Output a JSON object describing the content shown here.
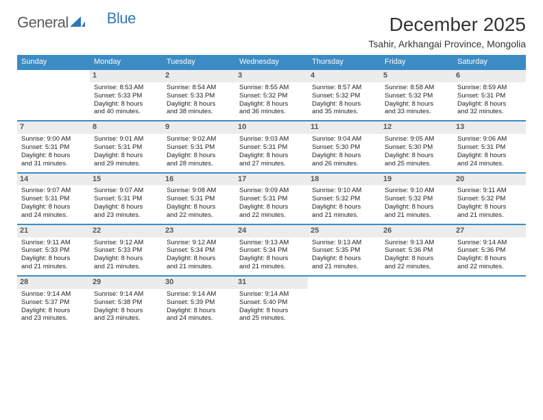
{
  "brand": {
    "word1": "General",
    "word2": "Blue"
  },
  "title": "December 2025",
  "location": "Tsahir, Arkhangai Province, Mongolia",
  "colors": {
    "header_bg": "#3b8bc4",
    "header_text": "#ffffff",
    "daynum_bg": "#ececec",
    "daynum_text": "#555555",
    "row_border": "#3b8bc4",
    "body_text": "#222222",
    "brand_gray": "#5a5a5a",
    "brand_blue": "#2d78b8"
  },
  "typography": {
    "title_fontsize": 28,
    "location_fontsize": 14,
    "header_cell_fontsize": 11,
    "daynum_fontsize": 11,
    "body_fontsize": 9.5
  },
  "weekdays": [
    "Sunday",
    "Monday",
    "Tuesday",
    "Wednesday",
    "Thursday",
    "Friday",
    "Saturday"
  ],
  "weeks": [
    [
      {
        "n": "",
        "l1": "",
        "l2": "",
        "l3": "",
        "l4": "",
        "empty": true
      },
      {
        "n": "1",
        "l1": "Sunrise: 8:53 AM",
        "l2": "Sunset: 5:33 PM",
        "l3": "Daylight: 8 hours",
        "l4": "and 40 minutes."
      },
      {
        "n": "2",
        "l1": "Sunrise: 8:54 AM",
        "l2": "Sunset: 5:33 PM",
        "l3": "Daylight: 8 hours",
        "l4": "and 38 minutes."
      },
      {
        "n": "3",
        "l1": "Sunrise: 8:55 AM",
        "l2": "Sunset: 5:32 PM",
        "l3": "Daylight: 8 hours",
        "l4": "and 36 minutes."
      },
      {
        "n": "4",
        "l1": "Sunrise: 8:57 AM",
        "l2": "Sunset: 5:32 PM",
        "l3": "Daylight: 8 hours",
        "l4": "and 35 minutes."
      },
      {
        "n": "5",
        "l1": "Sunrise: 8:58 AM",
        "l2": "Sunset: 5:32 PM",
        "l3": "Daylight: 8 hours",
        "l4": "and 33 minutes."
      },
      {
        "n": "6",
        "l1": "Sunrise: 8:59 AM",
        "l2": "Sunset: 5:31 PM",
        "l3": "Daylight: 8 hours",
        "l4": "and 32 minutes."
      }
    ],
    [
      {
        "n": "7",
        "l1": "Sunrise: 9:00 AM",
        "l2": "Sunset: 5:31 PM",
        "l3": "Daylight: 8 hours",
        "l4": "and 31 minutes."
      },
      {
        "n": "8",
        "l1": "Sunrise: 9:01 AM",
        "l2": "Sunset: 5:31 PM",
        "l3": "Daylight: 8 hours",
        "l4": "and 29 minutes."
      },
      {
        "n": "9",
        "l1": "Sunrise: 9:02 AM",
        "l2": "Sunset: 5:31 PM",
        "l3": "Daylight: 8 hours",
        "l4": "and 28 minutes."
      },
      {
        "n": "10",
        "l1": "Sunrise: 9:03 AM",
        "l2": "Sunset: 5:31 PM",
        "l3": "Daylight: 8 hours",
        "l4": "and 27 minutes."
      },
      {
        "n": "11",
        "l1": "Sunrise: 9:04 AM",
        "l2": "Sunset: 5:30 PM",
        "l3": "Daylight: 8 hours",
        "l4": "and 26 minutes."
      },
      {
        "n": "12",
        "l1": "Sunrise: 9:05 AM",
        "l2": "Sunset: 5:30 PM",
        "l3": "Daylight: 8 hours",
        "l4": "and 25 minutes."
      },
      {
        "n": "13",
        "l1": "Sunrise: 9:06 AM",
        "l2": "Sunset: 5:31 PM",
        "l3": "Daylight: 8 hours",
        "l4": "and 24 minutes."
      }
    ],
    [
      {
        "n": "14",
        "l1": "Sunrise: 9:07 AM",
        "l2": "Sunset: 5:31 PM",
        "l3": "Daylight: 8 hours",
        "l4": "and 24 minutes."
      },
      {
        "n": "15",
        "l1": "Sunrise: 9:07 AM",
        "l2": "Sunset: 5:31 PM",
        "l3": "Daylight: 8 hours",
        "l4": "and 23 minutes."
      },
      {
        "n": "16",
        "l1": "Sunrise: 9:08 AM",
        "l2": "Sunset: 5:31 PM",
        "l3": "Daylight: 8 hours",
        "l4": "and 22 minutes."
      },
      {
        "n": "17",
        "l1": "Sunrise: 9:09 AM",
        "l2": "Sunset: 5:31 PM",
        "l3": "Daylight: 8 hours",
        "l4": "and 22 minutes."
      },
      {
        "n": "18",
        "l1": "Sunrise: 9:10 AM",
        "l2": "Sunset: 5:32 PM",
        "l3": "Daylight: 8 hours",
        "l4": "and 21 minutes."
      },
      {
        "n": "19",
        "l1": "Sunrise: 9:10 AM",
        "l2": "Sunset: 5:32 PM",
        "l3": "Daylight: 8 hours",
        "l4": "and 21 minutes."
      },
      {
        "n": "20",
        "l1": "Sunrise: 9:11 AM",
        "l2": "Sunset: 5:32 PM",
        "l3": "Daylight: 8 hours",
        "l4": "and 21 minutes."
      }
    ],
    [
      {
        "n": "21",
        "l1": "Sunrise: 9:11 AM",
        "l2": "Sunset: 5:33 PM",
        "l3": "Daylight: 8 hours",
        "l4": "and 21 minutes."
      },
      {
        "n": "22",
        "l1": "Sunrise: 9:12 AM",
        "l2": "Sunset: 5:33 PM",
        "l3": "Daylight: 8 hours",
        "l4": "and 21 minutes."
      },
      {
        "n": "23",
        "l1": "Sunrise: 9:12 AM",
        "l2": "Sunset: 5:34 PM",
        "l3": "Daylight: 8 hours",
        "l4": "and 21 minutes."
      },
      {
        "n": "24",
        "l1": "Sunrise: 9:13 AM",
        "l2": "Sunset: 5:34 PM",
        "l3": "Daylight: 8 hours",
        "l4": "and 21 minutes."
      },
      {
        "n": "25",
        "l1": "Sunrise: 9:13 AM",
        "l2": "Sunset: 5:35 PM",
        "l3": "Daylight: 8 hours",
        "l4": "and 21 minutes."
      },
      {
        "n": "26",
        "l1": "Sunrise: 9:13 AM",
        "l2": "Sunset: 5:36 PM",
        "l3": "Daylight: 8 hours",
        "l4": "and 22 minutes."
      },
      {
        "n": "27",
        "l1": "Sunrise: 9:14 AM",
        "l2": "Sunset: 5:36 PM",
        "l3": "Daylight: 8 hours",
        "l4": "and 22 minutes."
      }
    ],
    [
      {
        "n": "28",
        "l1": "Sunrise: 9:14 AM",
        "l2": "Sunset: 5:37 PM",
        "l3": "Daylight: 8 hours",
        "l4": "and 23 minutes."
      },
      {
        "n": "29",
        "l1": "Sunrise: 9:14 AM",
        "l2": "Sunset: 5:38 PM",
        "l3": "Daylight: 8 hours",
        "l4": "and 23 minutes."
      },
      {
        "n": "30",
        "l1": "Sunrise: 9:14 AM",
        "l2": "Sunset: 5:39 PM",
        "l3": "Daylight: 8 hours",
        "l4": "and 24 minutes."
      },
      {
        "n": "31",
        "l1": "Sunrise: 9:14 AM",
        "l2": "Sunset: 5:40 PM",
        "l3": "Daylight: 8 hours",
        "l4": "and 25 minutes."
      },
      {
        "n": "",
        "l1": "",
        "l2": "",
        "l3": "",
        "l4": "",
        "empty": true
      },
      {
        "n": "",
        "l1": "",
        "l2": "",
        "l3": "",
        "l4": "",
        "empty": true
      },
      {
        "n": "",
        "l1": "",
        "l2": "",
        "l3": "",
        "l4": "",
        "empty": true
      }
    ]
  ]
}
